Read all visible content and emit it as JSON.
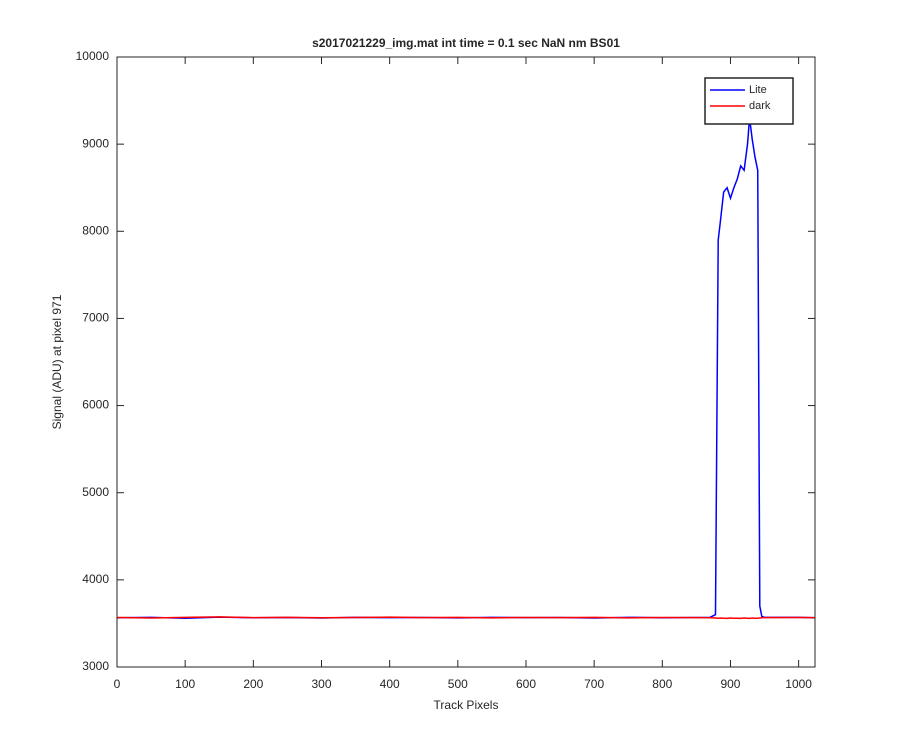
{
  "chart_data": {
    "type": "line",
    "title": "s2017021229_img.mat int time = 0.1 sec  NaN nm BS01",
    "x_label": "Track Pixels",
    "y_label": "Signal (ADU) at pixel 971",
    "x": [
      0,
      50,
      100,
      150,
      200,
      250,
      300,
      350,
      400,
      450,
      500,
      550,
      600,
      650,
      700,
      750,
      800,
      850,
      870,
      878,
      882,
      885,
      890,
      895,
      900,
      905,
      910,
      915,
      920,
      925,
      928,
      932,
      936,
      940,
      943,
      946,
      950,
      1000,
      1024
    ],
    "series": [
      {
        "name": "Lite",
        "color": "#0000ff",
        "values": [
          3565,
          3570,
          3560,
          3572,
          3565,
          3568,
          3562,
          3570,
          3566,
          3568,
          3564,
          3570,
          3566,
          3568,
          3562,
          3570,
          3565,
          3568,
          3570,
          3600,
          7900,
          8100,
          8450,
          8500,
          8380,
          8500,
          8600,
          8750,
          8700,
          9000,
          9300,
          9050,
          8850,
          8700,
          3700,
          3580,
          3570,
          3570,
          3565
        ]
      },
      {
        "name": "dark",
        "color": "#ff0000",
        "values": [
          3568,
          3562,
          3570,
          3575,
          3566,
          3570,
          3565,
          3568,
          3572,
          3566,
          3570,
          3564,
          3568,
          3566,
          3570,
          3564,
          3568,
          3566,
          3565,
          3562,
          3560,
          3562,
          3560,
          3558,
          3562,
          3560,
          3560,
          3558,
          3562,
          3560,
          3558,
          3562,
          3560,
          3560,
          3562,
          3565,
          3566,
          3568,
          3566
        ]
      }
    ],
    "xlim": [
      0,
      1024
    ],
    "ylim": [
      3000,
      10000
    ],
    "xticks": [
      0,
      100,
      200,
      300,
      400,
      500,
      600,
      700,
      800,
      900,
      1000
    ],
    "yticks": [
      3000,
      4000,
      5000,
      6000,
      7000,
      8000,
      9000,
      10000
    ],
    "legend": "top-right",
    "grid": false
  }
}
